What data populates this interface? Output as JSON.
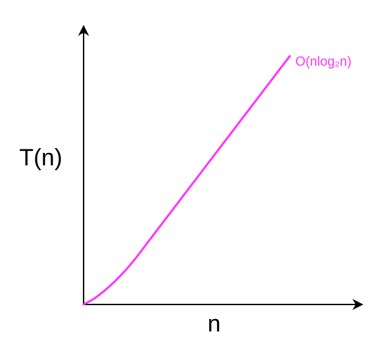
{
  "chart_data": {
    "type": "line",
    "title": "",
    "xlabel": "n",
    "ylabel": "T(n)",
    "x_ticks": [],
    "y_ticks": [],
    "grid": false,
    "legend": "none",
    "series": [
      {
        "name": "O(nlog₂n)",
        "color": "#ff33ff",
        "label_position": "end-of-line",
        "x": [
          0,
          0.5,
          1,
          1.5,
          2,
          2.5,
          3,
          3.5,
          4,
          4.5,
          5,
          5.5,
          6,
          6.5,
          7,
          7.5,
          8,
          8.5,
          9,
          9.5,
          10
        ],
        "y": [
          0,
          0.8,
          1.9,
          3.2,
          4.7,
          6.4,
          8.3,
          10.2,
          12.1,
          14.0,
          15.9,
          17.8,
          19.7,
          21.6,
          23.5,
          25.4,
          27.3,
          29.2,
          31.1,
          33.0,
          34.9
        ]
      }
    ],
    "xlim": [
      0,
      13.3
    ],
    "ylim": [
      0,
      38.5
    ]
  }
}
